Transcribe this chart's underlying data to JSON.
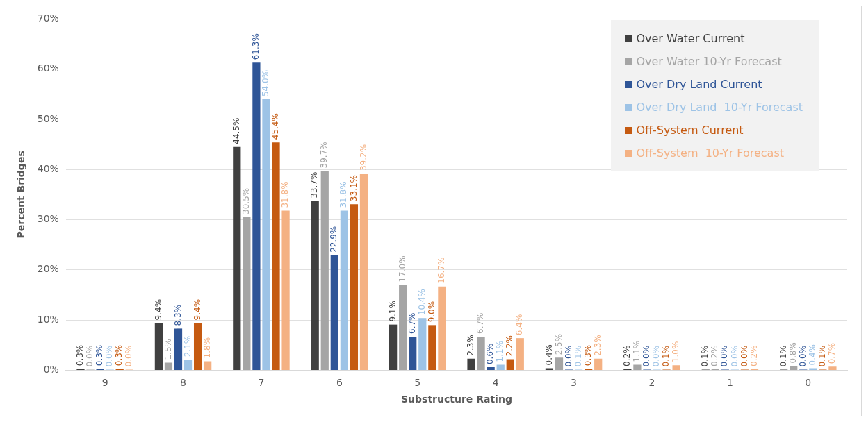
{
  "chart_data": {
    "type": "bar",
    "xlabel": "Substructure Rating",
    "ylabel": "Percent Bridges",
    "categories": [
      "9",
      "8",
      "7",
      "6",
      "5",
      "4",
      "3",
      "2",
      "1",
      "0"
    ],
    "ylim": [
      0,
      70
    ],
    "yticks": [
      {
        "value": 0,
        "label": "0%"
      },
      {
        "value": 10,
        "label": "10%"
      },
      {
        "value": 20,
        "label": "20%"
      },
      {
        "value": 30,
        "label": "30%"
      },
      {
        "value": 40,
        "label": "40%"
      },
      {
        "value": 50,
        "label": "50%"
      },
      {
        "value": 60,
        "label": "60%"
      },
      {
        "value": 70,
        "label": "70%"
      }
    ],
    "grid": "y",
    "legend": "top right",
    "series": [
      {
        "name": "Over Water Current",
        "color": "#404040",
        "values": [
          0.3,
          9.4,
          44.5,
          33.7,
          9.1,
          2.3,
          0.4,
          0.2,
          0.1,
          0.1
        ],
        "value_labels": [
          "0.3%",
          "9.4%",
          "44.5%",
          "33.7%",
          "9.1%",
          "2.3%",
          "0.4%",
          "0.2%",
          "0.1%",
          "0.1%"
        ]
      },
      {
        "name": "Over Water 10-Yr Forecast",
        "color": "#a5a5a5",
        "values": [
          0.0,
          1.5,
          30.5,
          39.7,
          17.0,
          6.7,
          2.5,
          1.1,
          0.2,
          0.8
        ],
        "value_labels": [
          "0.0%",
          "1.5%",
          "30.5%",
          "39.7%",
          "17.0%",
          "6.7%",
          "2.5%",
          "1.1%",
          "0.2%",
          "0.8%"
        ]
      },
      {
        "name": "Over Dry Land Current",
        "color": "#2f5597",
        "values": [
          0.3,
          8.3,
          61.3,
          22.9,
          6.7,
          0.6,
          0.0,
          0.0,
          0.0,
          0.0
        ],
        "value_labels": [
          "0.3%",
          "8.3%",
          "61.3%",
          "22.9%",
          "6.7%",
          "0.6%",
          "0.0%",
          "0.0%",
          "0.0%",
          "0.0%"
        ]
      },
      {
        "name": "Over Dry Land  10-Yr Forecast",
        "color": "#9dc3e6",
        "values": [
          0.0,
          2.1,
          54.0,
          31.8,
          10.4,
          1.1,
          0.1,
          0.0,
          0.0,
          0.4
        ],
        "value_labels": [
          "0.0%",
          "2.1%",
          "54.0%",
          "31.8%",
          "10.4%",
          "1.1%",
          "0.1%",
          "0.0%",
          "0.0%",
          "0.4%"
        ]
      },
      {
        "name": "Off-System Current",
        "color": "#c55a11",
        "values": [
          0.3,
          9.4,
          45.4,
          33.1,
          9.0,
          2.2,
          0.3,
          0.1,
          0.0,
          0.1
        ],
        "value_labels": [
          "0.3%",
          "9.4%",
          "45.4%",
          "33.1%",
          "9.0%",
          "2.2%",
          "0.3%",
          "0.1%",
          "0.0%",
          "0.1%"
        ]
      },
      {
        "name": "Off-System  10-Yr Forecast",
        "color": "#f4b183",
        "values": [
          0.0,
          1.8,
          31.8,
          39.2,
          16.7,
          6.4,
          2.3,
          1.0,
          0.2,
          0.7
        ],
        "value_labels": [
          "0.0%",
          "1.8%",
          "31.8%",
          "39.2%",
          "16.7%",
          "6.4%",
          "2.3%",
          "1.0%",
          "0.2%",
          "0.7%"
        ]
      }
    ]
  }
}
